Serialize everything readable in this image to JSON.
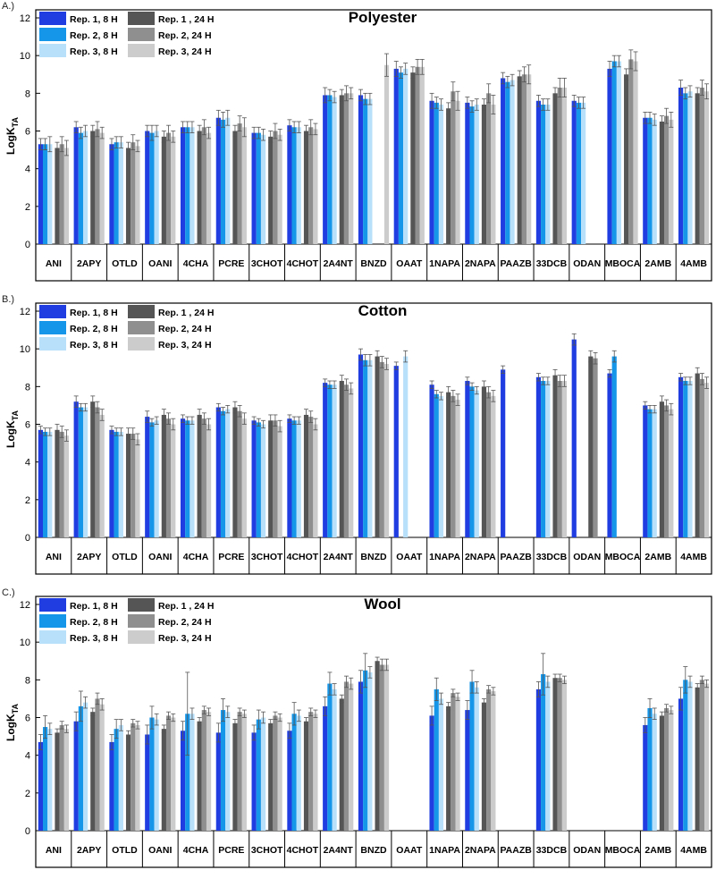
{
  "figure": {
    "panels": [
      {
        "label": "A.)"
      },
      {
        "label": "B.)"
      },
      {
        "label": "C.)"
      }
    ]
  },
  "chart_data": [
    {
      "type": "bar",
      "title": "Polyester",
      "xlabel": "",
      "ylabel": "LogK",
      "ylabel_subscript": "TA",
      "ylim": [
        0,
        12
      ],
      "yticks": [
        0,
        2,
        4,
        6,
        8,
        10,
        12
      ],
      "legend_position": "top-left",
      "categories": [
        "ANI",
        "2APY",
        "OTLD",
        "OANI",
        "4CHA",
        "PCRE",
        "3CHOT",
        "4CHOT",
        "2A4NT",
        "BNZD",
        "OAAT",
        "1NAPA",
        "2NAPA",
        "PAAZB",
        "33DCB",
        "ODAN",
        "MBOCA",
        "2AMB",
        "4AMB"
      ],
      "series": [
        {
          "name": "Rep. 1,  8 H",
          "color": "#1f3de0",
          "values": [
            5.3,
            6.2,
            5.3,
            6.0,
            6.2,
            6.7,
            5.9,
            6.3,
            7.9,
            7.9,
            9.3,
            7.6,
            7.5,
            8.8,
            7.6,
            7.6,
            9.3,
            6.7,
            8.3
          ],
          "errors": [
            0.3,
            0.3,
            0.3,
            0.3,
            0.3,
            0.4,
            0.3,
            0.3,
            0.4,
            0.3,
            0.4,
            0.4,
            0.3,
            0.3,
            0.3,
            0.3,
            0.4,
            0.3,
            0.4
          ]
        },
        {
          "name": "Rep. 2,  8 H",
          "color": "#1596e8",
          "values": [
            5.3,
            5.9,
            5.4,
            5.9,
            6.2,
            6.6,
            5.9,
            6.2,
            7.9,
            7.7,
            9.1,
            7.5,
            7.3,
            8.6,
            7.4,
            7.5,
            9.7,
            6.7,
            8.0
          ],
          "errors": [
            0.3,
            0.3,
            0.3,
            0.4,
            0.3,
            0.4,
            0.3,
            0.3,
            0.3,
            0.3,
            0.3,
            0.3,
            0.3,
            0.3,
            0.3,
            0.3,
            0.3,
            0.3,
            0.3
          ]
        },
        {
          "name": "Rep. 3,  8 H",
          "color": "#b9e0fa",
          "values": [
            5.3,
            6.0,
            5.4,
            6.0,
            6.2,
            6.7,
            5.8,
            6.2,
            7.8,
            7.7,
            9.3,
            7.4,
            7.4,
            8.7,
            7.4,
            7.5,
            9.7,
            6.6,
            8.1
          ],
          "errors": [
            0.4,
            0.3,
            0.3,
            0.3,
            0.3,
            0.4,
            0.3,
            0.3,
            0.3,
            0.3,
            0.3,
            0.3,
            0.3,
            0.3,
            0.3,
            0.3,
            0.3,
            0.3,
            0.3
          ]
        },
        {
          "name": "Rep. 1 , 24 H",
          "color": "#555555",
          "values": [
            5.1,
            6.0,
            5.1,
            5.7,
            6.0,
            6.0,
            5.7,
            6.0,
            7.9,
            null,
            9.1,
            7.2,
            7.4,
            8.9,
            8.0,
            null,
            9.0,
            6.5,
            8.0
          ],
          "errors": [
            0.3,
            0.3,
            0.3,
            0.3,
            0.3,
            0.3,
            0.3,
            0.3,
            0.3,
            null,
            0.3,
            0.3,
            0.3,
            0.3,
            0.3,
            null,
            0.3,
            0.3,
            0.3
          ]
        },
        {
          "name": "Rep. 2,  24 H",
          "color": "#8f8f8f",
          "values": [
            5.3,
            6.1,
            5.4,
            5.9,
            6.2,
            6.4,
            6.0,
            6.2,
            8.0,
            null,
            9.4,
            8.1,
            8.0,
            9.0,
            8.3,
            null,
            9.8,
            6.8,
            8.3
          ],
          "errors": [
            0.4,
            0.4,
            0.4,
            0.4,
            0.4,
            0.4,
            0.4,
            0.4,
            0.4,
            null,
            0.4,
            0.5,
            0.5,
            0.4,
            0.5,
            null,
            0.5,
            0.4,
            0.4
          ]
        },
        {
          "name": "Rep. 3,  24 H",
          "color": "#cccccc",
          "values": [
            5.1,
            5.9,
            5.2,
            5.7,
            5.9,
            6.2,
            5.8,
            6.1,
            8.0,
            9.5,
            9.4,
            7.6,
            7.4,
            9.0,
            8.3,
            null,
            9.7,
            6.6,
            8.1
          ],
          "errors": [
            0.4,
            0.3,
            0.3,
            0.3,
            0.3,
            0.5,
            0.3,
            0.3,
            0.3,
            0.6,
            0.4,
            0.5,
            0.5,
            0.5,
            0.5,
            null,
            0.5,
            0.4,
            0.4
          ]
        }
      ]
    },
    {
      "type": "bar",
      "title": "Cotton",
      "xlabel": "",
      "ylabel": "LogK",
      "ylabel_subscript": "TA",
      "ylim": [
        0,
        12
      ],
      "yticks": [
        0,
        2,
        4,
        6,
        8,
        10,
        12
      ],
      "legend_position": "top-left",
      "categories": [
        "ANI",
        "2APY",
        "OTLD",
        "OANI",
        "4CHA",
        "PCRE",
        "3CHOT",
        "4CHOT",
        "2A4NT",
        "BNZD",
        "OAAT",
        "1NAPA",
        "2NAPA",
        "PAAZB",
        "33DCB",
        "ODAN",
        "MBOCA",
        "2AMB",
        "4AMB"
      ],
      "series": [
        {
          "name": "Rep. 1,  8 H",
          "color": "#1f3de0",
          "values": [
            5.7,
            7.2,
            5.7,
            6.4,
            6.3,
            6.9,
            6.2,
            6.3,
            8.2,
            9.7,
            9.1,
            8.1,
            8.3,
            8.9,
            8.5,
            10.5,
            8.7,
            7.0,
            8.5
          ],
          "errors": [
            0.2,
            0.3,
            0.2,
            0.3,
            0.2,
            0.2,
            0.2,
            0.2,
            0.2,
            0.3,
            0.2,
            0.2,
            0.2,
            0.2,
            0.2,
            0.3,
            0.2,
            0.2,
            0.2
          ]
        },
        {
          "name": "Rep. 2,  8 H",
          "color": "#1596e8",
          "values": [
            5.6,
            6.9,
            5.6,
            6.1,
            6.2,
            6.7,
            6.1,
            6.2,
            8.1,
            9.4,
            null,
            7.6,
            8.0,
            null,
            8.3,
            null,
            9.6,
            6.8,
            8.3
          ],
          "errors": [
            0.2,
            0.2,
            0.2,
            0.2,
            0.2,
            0.2,
            0.2,
            0.2,
            0.2,
            0.3,
            null,
            0.2,
            0.2,
            null,
            0.2,
            null,
            0.3,
            0.2,
            0.2
          ]
        },
        {
          "name": "Rep. 3,  8 H",
          "color": "#b9e0fa",
          "values": [
            5.6,
            6.9,
            5.6,
            6.2,
            6.2,
            6.8,
            6.0,
            6.2,
            8.1,
            9.4,
            9.6,
            7.5,
            7.8,
            null,
            8.3,
            null,
            null,
            6.8,
            8.3
          ],
          "errors": [
            0.2,
            0.2,
            0.2,
            0.2,
            0.2,
            0.2,
            0.2,
            0.2,
            0.2,
            0.3,
            0.3,
            0.2,
            0.2,
            null,
            0.2,
            null,
            null,
            0.2,
            0.2
          ]
        },
        {
          "name": "Rep. 1 , 24 H",
          "color": "#555555",
          "values": [
            5.7,
            7.2,
            5.5,
            6.5,
            6.5,
            6.9,
            6.2,
            6.5,
            8.3,
            9.6,
            null,
            7.7,
            8.0,
            null,
            8.6,
            9.6,
            null,
            7.2,
            8.7
          ],
          "errors": [
            0.3,
            0.3,
            0.3,
            0.3,
            0.3,
            0.3,
            0.3,
            0.3,
            0.3,
            0.3,
            null,
            0.3,
            0.3,
            null,
            0.3,
            0.3,
            null,
            0.3,
            0.3
          ]
        },
        {
          "name": "Rep. 2,  24 H",
          "color": "#8f8f8f",
          "values": [
            5.6,
            6.9,
            5.5,
            6.3,
            6.3,
            6.7,
            6.2,
            6.4,
            8.1,
            9.3,
            null,
            7.5,
            7.7,
            null,
            8.3,
            9.5,
            null,
            7.0,
            8.4
          ],
          "errors": [
            0.3,
            0.3,
            0.3,
            0.3,
            0.3,
            0.3,
            0.3,
            0.3,
            0.3,
            0.3,
            null,
            0.3,
            0.3,
            null,
            0.3,
            0.3,
            null,
            0.3,
            0.3
          ]
        },
        {
          "name": "Rep. 3,  24 H",
          "color": "#cccccc",
          "values": [
            5.4,
            6.5,
            5.2,
            6.0,
            6.0,
            6.3,
            5.9,
            6.0,
            7.9,
            9.2,
            null,
            7.3,
            7.5,
            null,
            8.3,
            null,
            null,
            6.8,
            8.2
          ],
          "errors": [
            0.3,
            0.3,
            0.3,
            0.3,
            0.3,
            0.3,
            0.3,
            0.3,
            0.3,
            0.3,
            null,
            0.3,
            0.3,
            null,
            0.3,
            null,
            null,
            0.3,
            0.3
          ]
        }
      ]
    },
    {
      "type": "bar",
      "title": "Wool",
      "xlabel": "",
      "ylabel": "LogK",
      "ylabel_subscript": "TA",
      "ylim": [
        0,
        12
      ],
      "yticks": [
        0,
        2,
        4,
        6,
        8,
        10,
        12
      ],
      "legend_position": "top-left",
      "categories": [
        "ANI",
        "2APY",
        "OTLD",
        "OANI",
        "4CHA",
        "PCRE",
        "3CHOT",
        "4CHOT",
        "2A4NT",
        "BNZD",
        "OAAT",
        "1NAPA",
        "2NAPA",
        "PAAZB",
        "33DCB",
        "ODAN",
        "MBOCA",
        "2AMB",
        "4AMB"
      ],
      "series": [
        {
          "name": "Rep. 1,  8 H",
          "color": "#1f3de0",
          "values": [
            4.7,
            5.8,
            4.7,
            5.1,
            5.3,
            5.2,
            5.2,
            5.3,
            6.6,
            7.9,
            null,
            6.1,
            6.4,
            null,
            7.5,
            null,
            null,
            5.6,
            7.0
          ],
          "errors": [
            0.4,
            0.5,
            0.4,
            0.5,
            0.5,
            0.5,
            0.4,
            0.4,
            0.5,
            0.6,
            null,
            0.5,
            0.5,
            null,
            0.4,
            null,
            null,
            0.4,
            0.6
          ]
        },
        {
          "name": "Rep. 2,  8 H",
          "color": "#1596e8",
          "values": [
            5.5,
            6.6,
            5.4,
            6.0,
            6.2,
            6.4,
            5.9,
            6.2,
            7.8,
            8.5,
            null,
            7.5,
            7.9,
            null,
            8.3,
            null,
            null,
            6.5,
            8.0
          ],
          "errors": [
            0.6,
            0.8,
            0.5,
            0.6,
            2.2,
            0.6,
            0.5,
            0.6,
            0.6,
            0.9,
            null,
            0.6,
            0.6,
            null,
            1.1,
            null,
            null,
            0.5,
            0.7
          ]
        },
        {
          "name": "Rep. 3,  8 H",
          "color": "#b9e0fa",
          "values": [
            5.4,
            6.8,
            5.6,
            5.9,
            6.2,
            6.3,
            6.0,
            6.1,
            7.5,
            8.4,
            null,
            7.0,
            7.6,
            null,
            7.9,
            null,
            null,
            6.2,
            7.9
          ],
          "errors": [
            0.3,
            0.3,
            0.3,
            0.3,
            0.3,
            0.3,
            0.3,
            0.3,
            0.3,
            0.3,
            null,
            0.3,
            0.3,
            null,
            0.3,
            null,
            null,
            0.3,
            0.3
          ]
        },
        {
          "name": "Rep. 1 , 24 H",
          "color": "#555555",
          "values": [
            5.2,
            6.3,
            5.1,
            5.4,
            5.8,
            5.7,
            5.7,
            5.8,
            7.0,
            9.0,
            null,
            6.6,
            6.8,
            null,
            8.1,
            null,
            null,
            6.1,
            7.6
          ],
          "errors": [
            0.2,
            0.2,
            0.2,
            0.2,
            0.2,
            0.2,
            0.2,
            0.2,
            0.2,
            0.2,
            null,
            0.2,
            0.2,
            null,
            0.2,
            null,
            null,
            0.2,
            0.2
          ]
        },
        {
          "name": "Rep. 2,  24 H",
          "color": "#8f8f8f",
          "values": [
            5.6,
            7.0,
            5.7,
            6.1,
            6.4,
            6.3,
            6.1,
            6.3,
            7.9,
            8.8,
            null,
            7.3,
            7.5,
            null,
            8.1,
            null,
            null,
            6.5,
            8.0
          ],
          "errors": [
            0.2,
            0.3,
            0.2,
            0.2,
            0.2,
            0.2,
            0.2,
            0.2,
            0.3,
            0.3,
            null,
            0.2,
            0.2,
            null,
            0.2,
            null,
            null,
            0.2,
            0.2
          ]
        },
        {
          "name": "Rep. 3,  24 H",
          "color": "#cccccc",
          "values": [
            5.4,
            6.7,
            5.6,
            6.0,
            6.3,
            6.2,
            6.0,
            6.2,
            7.8,
            8.8,
            null,
            7.1,
            7.4,
            null,
            8.0,
            null,
            null,
            6.4,
            7.8
          ],
          "errors": [
            0.2,
            0.3,
            0.2,
            0.2,
            0.2,
            0.2,
            0.2,
            0.2,
            0.3,
            0.3,
            null,
            0.2,
            0.2,
            null,
            0.2,
            null,
            null,
            0.2,
            0.2
          ]
        }
      ]
    }
  ]
}
